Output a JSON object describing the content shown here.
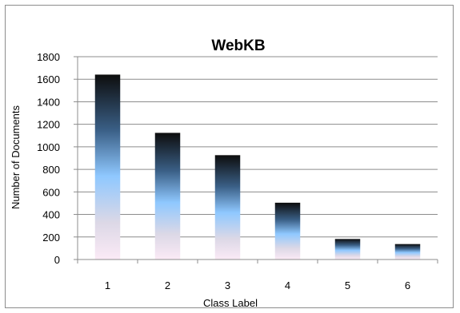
{
  "chart_data": {
    "type": "bar",
    "title": "WebKB",
    "xlabel": "Class Label",
    "ylabel": "Number of Documents",
    "categories": [
      "1",
      "2",
      "3",
      "4",
      "5",
      "6"
    ],
    "values": [
      1641,
      1124,
      926,
      504,
      182,
      137
    ],
    "ylim": [
      0,
      1800
    ],
    "yticks": [
      0,
      200,
      400,
      600,
      800,
      1000,
      1200,
      1400,
      1600,
      1800
    ],
    "grid": true,
    "legend": "none",
    "colors": {
      "bar_top": "#0d0d0d",
      "bar_upper": "#3a5f86",
      "bar_middle": "#8fc8ff",
      "bar_lower": "#dcd8e6",
      "bar_bottom": "#fbeaf6",
      "grid": "#8c8c8c",
      "axis": "#8c8c8c",
      "frame": "#8c8c8c"
    }
  }
}
